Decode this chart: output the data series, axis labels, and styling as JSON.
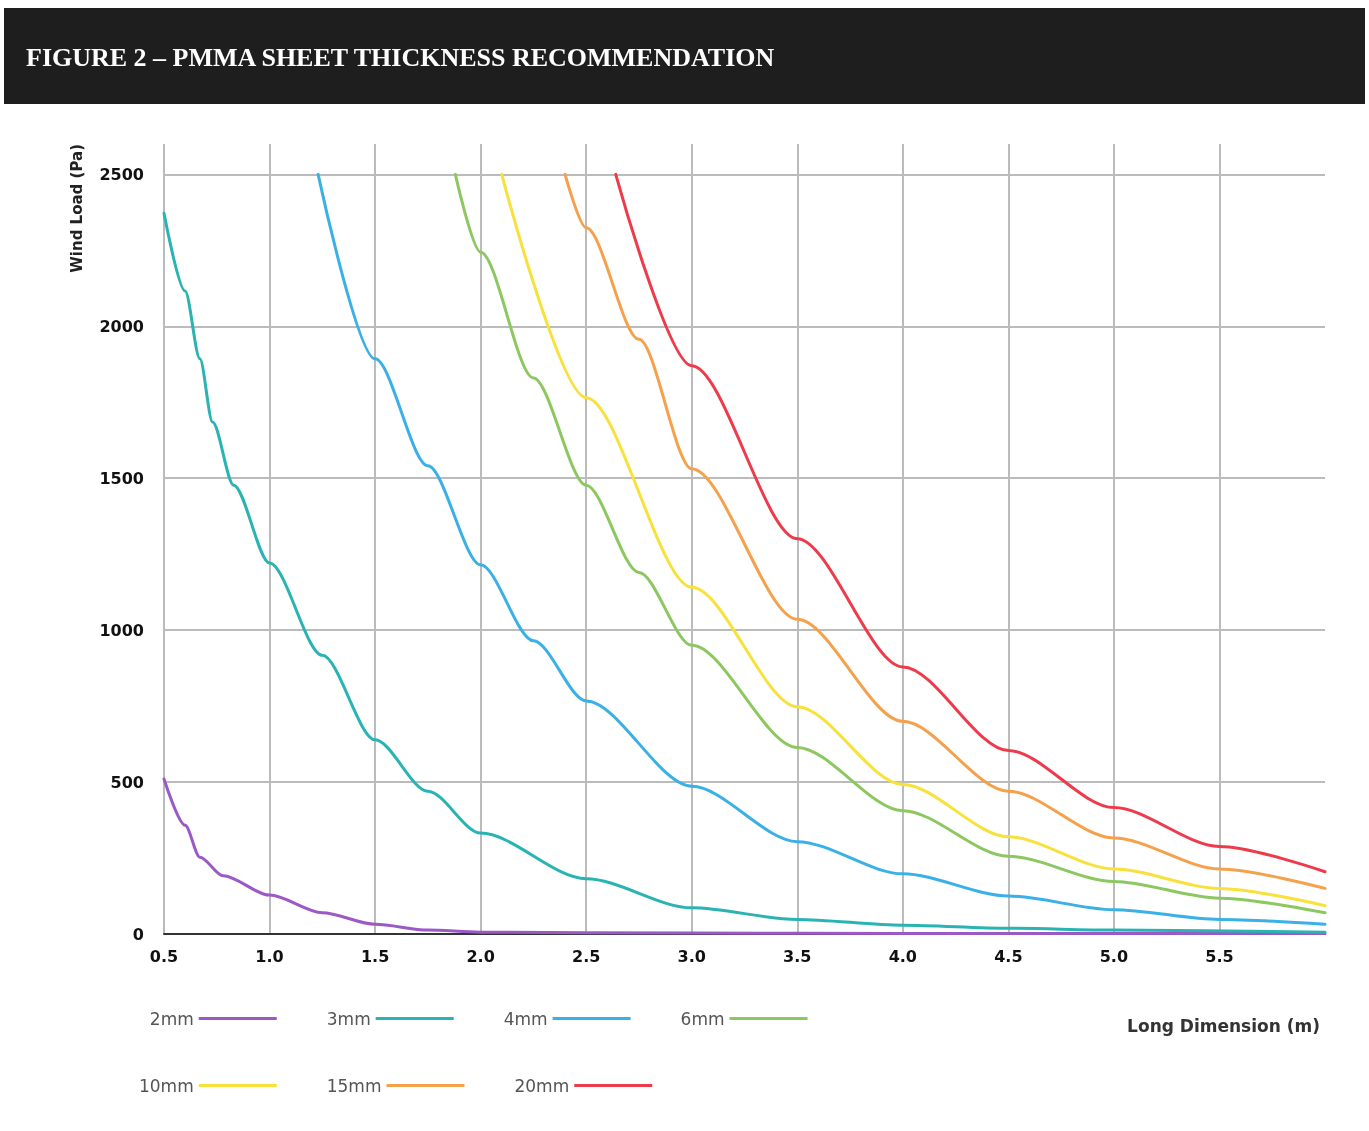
{
  "chart_data": {
    "type": "line",
    "title": "FIGURE 2 – PMMA SHEET THICKNESS RECOMMENDATION",
    "xlabel": "Long Dimension (m)",
    "ylabel": "Wind Load (Pa)",
    "xlim": [
      0.5,
      6.0
    ],
    "xticks": [
      {
        "value": 0.5,
        "label": "0.5"
      },
      {
        "value": 1,
        "label": "1.0"
      },
      {
        "value": 1.5,
        "label": "1.5"
      },
      {
        "value": 2,
        "label": "2.0"
      },
      {
        "value": 2.5,
        "label": "2.5"
      },
      {
        "value": 3,
        "label": "3.0"
      },
      {
        "value": 3.5,
        "label": "3.5"
      },
      {
        "value": 4,
        "label": "4.0"
      },
      {
        "value": 4.5,
        "label": "4.5"
      },
      {
        "value": 5,
        "label": "5.0"
      },
      {
        "value": 5.5,
        "label": "5.5"
      }
    ],
    "ylim": [
      0,
      2600
    ],
    "yticks": [
      0,
      500,
      1000,
      1500,
      2000,
      2500
    ],
    "grid": true,
    "legend": "bottom",
    "marker": "none",
    "line_style": "solid",
    "series": [
      {
        "name": "2mm",
        "color": "#9b59c6",
        "x": [
          0.5,
          0.6,
          0.67,
          0.78,
          1.0,
          1.25,
          1.5,
          1.75,
          2.0,
          3.0,
          4.0,
          5.0,
          6.0
        ],
        "values": [
          510,
          358,
          253,
          192,
          128,
          70,
          32,
          13,
          6,
          3,
          2,
          2,
          2
        ]
      },
      {
        "name": "3mm",
        "color": "#2ab3b3",
        "x": [
          0.5,
          0.6,
          0.67,
          0.73,
          0.83,
          1.0,
          1.25,
          1.5,
          1.75,
          2.0,
          2.5,
          3.0,
          3.5,
          4.0,
          4.5,
          5.0,
          6.0
        ],
        "values": [
          2372,
          2116,
          1893,
          1685,
          1477,
          1221,
          917,
          639,
          470,
          332,
          182,
          86,
          48,
          29,
          19,
          13,
          6
        ]
      },
      {
        "name": "4mm",
        "color": "#3ab0e6",
        "x": [
          1.23,
          1.5,
          1.75,
          2.0,
          2.25,
          2.5,
          3.0,
          3.5,
          4.0,
          4.5,
          5.0,
          5.5,
          6.0
        ],
        "values": [
          2500,
          1893,
          1541,
          1215,
          965,
          767,
          486,
          304,
          198,
          125,
          80,
          48,
          32
        ]
      },
      {
        "name": "6mm",
        "color": "#8cc760",
        "x": [
          1.88,
          2.0,
          2.25,
          2.5,
          2.75,
          3.0,
          3.5,
          4.0,
          4.5,
          5.0,
          5.5,
          6.0
        ],
        "values": [
          2500,
          2244,
          1830,
          1477,
          1190,
          950,
          614,
          406,
          256,
          173,
          118,
          70
        ]
      },
      {
        "name": "10mm",
        "color": "#f7e13a",
        "x": [
          2.1,
          2.5,
          3.0,
          3.5,
          4.0,
          4.5,
          5.0,
          5.5,
          6.0
        ],
        "values": [
          2500,
          1765,
          1141,
          748,
          492,
          320,
          214,
          150,
          93
        ]
      },
      {
        "name": "15mm",
        "color": "#f5a04a",
        "x": [
          2.4,
          2.5,
          2.75,
          3.0,
          3.5,
          4.0,
          4.5,
          5.0,
          5.5,
          6.0
        ],
        "values": [
          2500,
          2324,
          1957,
          1531,
          1036,
          700,
          470,
          316,
          214,
          150
        ]
      },
      {
        "name": "20mm",
        "color": "#ee3b4b",
        "x": [
          2.64,
          3.0,
          3.5,
          4.0,
          4.5,
          5.0,
          5.5,
          6.0
        ],
        "values": [
          2500,
          1870,
          1301,
          879,
          604,
          416,
          288,
          205
        ]
      }
    ]
  }
}
